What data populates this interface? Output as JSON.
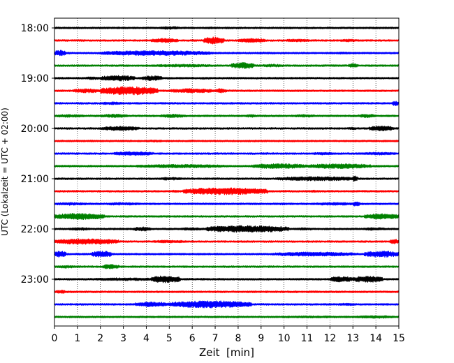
{
  "chart_data": {
    "type": "line",
    "title": "",
    "xlabel": "Zeit  [min]",
    "ylabel": "UTC (Lokalzeit = UTC + 02:00)",
    "xlim": [
      0,
      15
    ],
    "x_ticks": [
      "0",
      "1",
      "2",
      "3",
      "4",
      "5",
      "6",
      "7",
      "8",
      "9",
      "10",
      "11",
      "12",
      "13",
      "14",
      "15"
    ],
    "y_ticks": [
      {
        "label": "18:00",
        "trace": 0
      },
      {
        "label": "19:00",
        "trace": 4
      },
      {
        "label": "20:00",
        "trace": 8
      },
      {
        "label": "21:00",
        "trace": 12
      },
      {
        "label": "22:00",
        "trace": 16
      },
      {
        "label": "23:00",
        "trace": 20
      }
    ],
    "vertical_grid": "dotted",
    "trace_minutes": 15,
    "colors": [
      "#000000",
      "#ff0000",
      "#0000ff",
      "#008000"
    ],
    "series": [
      {
        "start": "18:00",
        "color": "black",
        "bursts": [
          [
            4.5,
            5.5,
            2.0
          ],
          [
            6.5,
            7.0,
            1.5
          ]
        ]
      },
      {
        "start": "18:15",
        "color": "red",
        "bursts": [
          [
            4.2,
            5.4,
            3.0
          ],
          [
            6.5,
            7.4,
            5.0
          ],
          [
            8.0,
            9.2,
            3.0
          ],
          [
            10.0,
            11.2,
            2.0
          ],
          [
            12.4,
            13.2,
            2.0
          ]
        ]
      },
      {
        "start": "18:30",
        "color": "blue",
        "bursts": [
          [
            0.0,
            0.5,
            4.0
          ],
          [
            2.0,
            6.9,
            3.5
          ],
          [
            8.5,
            9.6,
            1.5
          ],
          [
            12.0,
            13.2,
            1.5
          ]
        ]
      },
      {
        "start": "18:45",
        "color": "green",
        "bursts": [
          [
            4.2,
            7.0,
            2.0
          ],
          [
            7.7,
            8.7,
            4.5
          ],
          [
            9.0,
            10.0,
            2.0
          ],
          [
            12.8,
            13.2,
            3.0
          ]
        ]
      },
      {
        "start": "19:00",
        "color": "black",
        "bursts": [
          [
            1.3,
            2.0,
            2.0
          ],
          [
            2.0,
            3.5,
            4.0
          ],
          [
            3.8,
            4.7,
            3.5
          ],
          [
            6.2,
            7.0,
            1.5
          ]
        ]
      },
      {
        "start": "19:15",
        "color": "red",
        "bursts": [
          [
            0.8,
            2.0,
            3.0
          ],
          [
            2.0,
            4.5,
            6.0
          ],
          [
            5.0,
            7.0,
            3.0
          ],
          [
            7.0,
            7.5,
            3.0
          ]
        ]
      },
      {
        "start": "19:30",
        "color": "blue",
        "bursts": [
          [
            2.0,
            3.0,
            2.0
          ],
          [
            14.7,
            15.0,
            3.5
          ]
        ]
      },
      {
        "start": "19:45",
        "color": "green",
        "bursts": [
          [
            0.0,
            1.4,
            2.0
          ],
          [
            2.0,
            3.2,
            2.5
          ],
          [
            4.6,
            5.7,
            2.5
          ],
          [
            8.3,
            8.8,
            2.0
          ],
          [
            10.4,
            11.4,
            2.0
          ],
          [
            13.2,
            14.0,
            2.5
          ]
        ]
      },
      {
        "start": "20:00",
        "color": "black",
        "bursts": [
          [
            2.0,
            3.7,
            3.0
          ],
          [
            12.7,
            13.2,
            2.0
          ],
          [
            13.7,
            14.8,
            3.5
          ]
        ]
      },
      {
        "start": "20:15",
        "color": "red",
        "bursts": [
          [
            3.8,
            5.0,
            1.5
          ]
        ]
      },
      {
        "start": "20:30",
        "color": "blue",
        "bursts": [
          [
            2.6,
            4.3,
            3.0
          ],
          [
            8.8,
            9.5,
            1.5
          ],
          [
            11.2,
            12.2,
            2.0
          ],
          [
            13.2,
            15.0,
            2.0
          ]
        ]
      },
      {
        "start": "20:45",
        "color": "green",
        "bursts": [
          [
            3.5,
            7.5,
            2.5
          ],
          [
            8.6,
            11.0,
            3.5
          ],
          [
            11.0,
            13.8,
            3.5
          ]
        ]
      },
      {
        "start": "21:00",
        "color": "black",
        "bursts": [
          [
            4.5,
            5.6,
            2.0
          ],
          [
            9.7,
            13.2,
            3.0
          ],
          [
            13.0,
            13.2,
            4.5
          ]
        ]
      },
      {
        "start": "21:15",
        "color": "red",
        "bursts": [
          [
            4.8,
            5.6,
            1.5
          ],
          [
            5.6,
            9.3,
            5.0
          ],
          [
            10.8,
            11.8,
            1.5
          ]
        ]
      },
      {
        "start": "21:30",
        "color": "blue",
        "bursts": [
          [
            0.0,
            1.5,
            2.0
          ],
          [
            2.2,
            3.8,
            2.0
          ],
          [
            9.6,
            10.2,
            1.5
          ],
          [
            11.2,
            13.2,
            2.0
          ],
          [
            13.0,
            13.3,
            3.5
          ]
        ]
      },
      {
        "start": "21:45",
        "color": "green",
        "bursts": [
          [
            0.0,
            2.2,
            4.5
          ],
          [
            13.5,
            15.0,
            4.0
          ]
        ]
      },
      {
        "start": "22:00",
        "color": "black",
        "bursts": [
          [
            0.6,
            1.6,
            2.0
          ],
          [
            3.4,
            4.2,
            3.0
          ],
          [
            5.4,
            6.5,
            2.0
          ],
          [
            6.6,
            10.2,
            5.0
          ],
          [
            10.5,
            11.3,
            1.8
          ],
          [
            13.4,
            14.5,
            2.0
          ]
        ]
      },
      {
        "start": "22:15",
        "color": "red",
        "bursts": [
          [
            0.0,
            2.8,
            4.0
          ],
          [
            4.2,
            5.8,
            2.0
          ],
          [
            14.6,
            15.0,
            3.5
          ]
        ]
      },
      {
        "start": "22:30",
        "color": "blue",
        "bursts": [
          [
            0.0,
            0.5,
            4.5
          ],
          [
            1.6,
            2.5,
            4.5
          ],
          [
            9.5,
            13.2,
            3.0
          ],
          [
            13.5,
            15.0,
            4.5
          ]
        ]
      },
      {
        "start": "22:45",
        "color": "green",
        "bursts": [
          [
            0.0,
            1.0,
            2.0
          ],
          [
            2.1,
            2.8,
            3.5
          ]
        ]
      },
      {
        "start": "23:00",
        "color": "black",
        "bursts": [
          [
            1.6,
            4.5,
            2.0
          ],
          [
            4.2,
            5.5,
            5.0
          ],
          [
            12.0,
            13.0,
            4.0
          ],
          [
            13.0,
            14.3,
            4.5
          ]
        ]
      },
      {
        "start": "23:15",
        "color": "red",
        "bursts": [
          [
            0.0,
            0.5,
            2.5
          ]
        ]
      },
      {
        "start": "23:30",
        "color": "blue",
        "bursts": [
          [
            3.5,
            5.0,
            3.5
          ],
          [
            5.0,
            8.6,
            5.0
          ],
          [
            12.3,
            13.3,
            1.8
          ]
        ]
      },
      {
        "start": "23:45",
        "color": "green",
        "bursts": [
          [
            9.3,
            13.2,
            1.5
          ],
          [
            13.0,
            15.0,
            2.0
          ]
        ]
      }
    ]
  }
}
